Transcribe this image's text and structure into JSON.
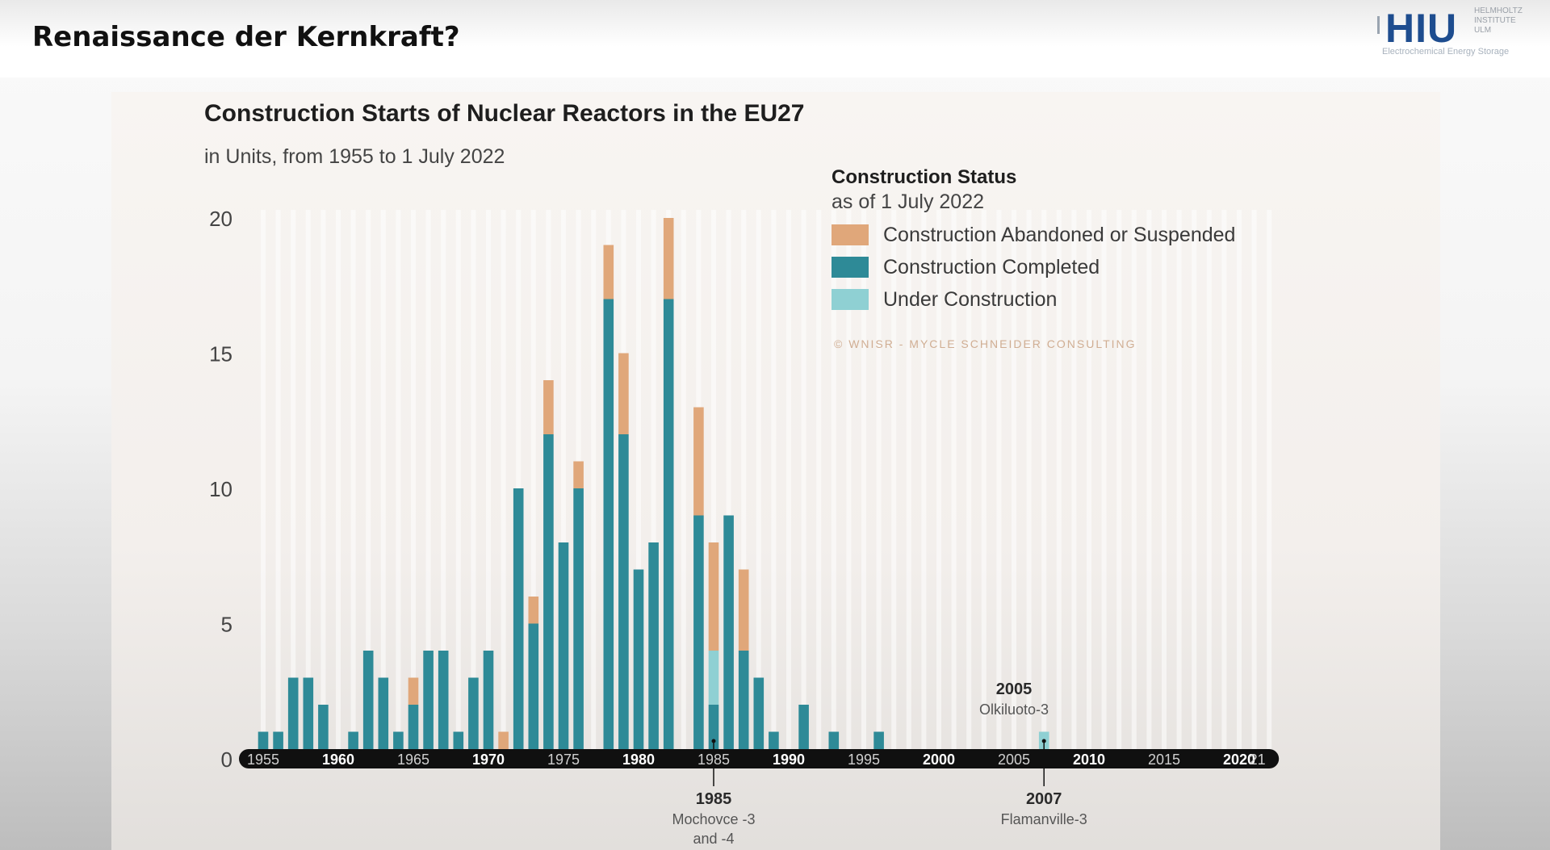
{
  "slide": {
    "title": "Renaissance der Kernkraft?",
    "logo": {
      "mark": "HIU",
      "side_text": [
        "HELMHOLTZ",
        "INSTITUTE",
        "ULM"
      ],
      "subtitle": "Electrochemical Energy Storage"
    }
  },
  "chart_data": {
    "type": "bar",
    "stacked": true,
    "title": "Construction Starts of Nuclear Reactors in the EU27",
    "subtitle": "in Units, from 1955 to 1 July 2022",
    "legend": {
      "title": "Construction Status",
      "subtitle": "as of 1 July 2022",
      "placement": "top-right"
    },
    "credit": "© WNISR - MYCLE SCHNEIDER CONSULTING",
    "x": [
      1955,
      1956,
      1957,
      1958,
      1959,
      1960,
      1961,
      1962,
      1963,
      1964,
      1965,
      1966,
      1967,
      1968,
      1969,
      1970,
      1971,
      1972,
      1973,
      1974,
      1975,
      1976,
      1977,
      1978,
      1979,
      1980,
      1981,
      1982,
      1983,
      1984,
      1985,
      1986,
      1987,
      1988,
      1989,
      1990,
      1991,
      1992,
      1993,
      1994,
      1995,
      1996,
      1997,
      1998,
      1999,
      2000,
      2001,
      2002,
      2003,
      2004,
      2005,
      2006,
      2007,
      2008,
      2009,
      2010,
      2011,
      2012,
      2013,
      2014,
      2015,
      2016,
      2017,
      2018,
      2019,
      2020,
      2021,
      2022
    ],
    "series": [
      {
        "name": "Construction Abandoned or Suspended",
        "color": "#e0a77a",
        "values": [
          0,
          0,
          0,
          0,
          0,
          0,
          0,
          0,
          0,
          0,
          1,
          0,
          0,
          0,
          0,
          0,
          1,
          0,
          1,
          2,
          0,
          1,
          0,
          2,
          3,
          0,
          0,
          3,
          0,
          4,
          4,
          0,
          3,
          0,
          0,
          0,
          0,
          0,
          0,
          0,
          0,
          0,
          0,
          0,
          0,
          0,
          0,
          0,
          0,
          0,
          0,
          0,
          0,
          0,
          0,
          0,
          0,
          0,
          0,
          0,
          0,
          0,
          0,
          0,
          0,
          0,
          0,
          0
        ]
      },
      {
        "name": "Construction Completed",
        "color": "#2e8a97",
        "values": [
          1,
          1,
          3,
          3,
          2,
          0,
          1,
          4,
          3,
          1,
          2,
          4,
          4,
          1,
          3,
          4,
          0,
          10,
          5,
          12,
          8,
          10,
          0,
          17,
          12,
          7,
          8,
          17,
          0,
          9,
          2,
          9,
          4,
          3,
          1,
          0,
          2,
          0,
          1,
          0,
          0,
          1,
          0,
          0,
          0,
          0,
          0,
          0,
          0,
          0,
          0,
          0,
          0,
          0,
          0,
          0,
          0,
          0,
          0,
          0,
          0,
          0,
          0,
          0,
          0,
          0,
          0,
          0
        ]
      },
      {
        "name": "Under Construction",
        "color": "#8fd0d3",
        "values": [
          0,
          0,
          0,
          0,
          0,
          0,
          0,
          0,
          0,
          0,
          0,
          0,
          0,
          0,
          0,
          0,
          0,
          0,
          0,
          0,
          0,
          0,
          0,
          0,
          0,
          0,
          0,
          0,
          0,
          0,
          2,
          0,
          0,
          0,
          0,
          0,
          0,
          0,
          0,
          0,
          0,
          0,
          0,
          0,
          0,
          0,
          0,
          0,
          0,
          0,
          0,
          0,
          1,
          0,
          0,
          0,
          0,
          0,
          0,
          0,
          0,
          0,
          0,
          0,
          0,
          0,
          0,
          0
        ]
      }
    ],
    "ylim": [
      0,
      20
    ],
    "yticks": [
      0,
      5,
      10,
      15,
      20
    ],
    "xtick_labels": [
      "1955",
      "1960",
      "1965",
      "1970",
      "1975",
      "1980",
      "1985",
      "1990",
      "1995",
      "2000",
      "2005",
      "2010",
      "2015",
      "2020",
      "21"
    ],
    "annotations": [
      {
        "year": "1985",
        "text": [
          "Mochovce -3",
          "and -4"
        ],
        "position": "below"
      },
      {
        "year": "2005",
        "text": [
          "Olkiluoto-3"
        ],
        "position": "above"
      },
      {
        "year": "2007",
        "text": [
          "Flamanville-3"
        ],
        "position": "below"
      }
    ]
  }
}
